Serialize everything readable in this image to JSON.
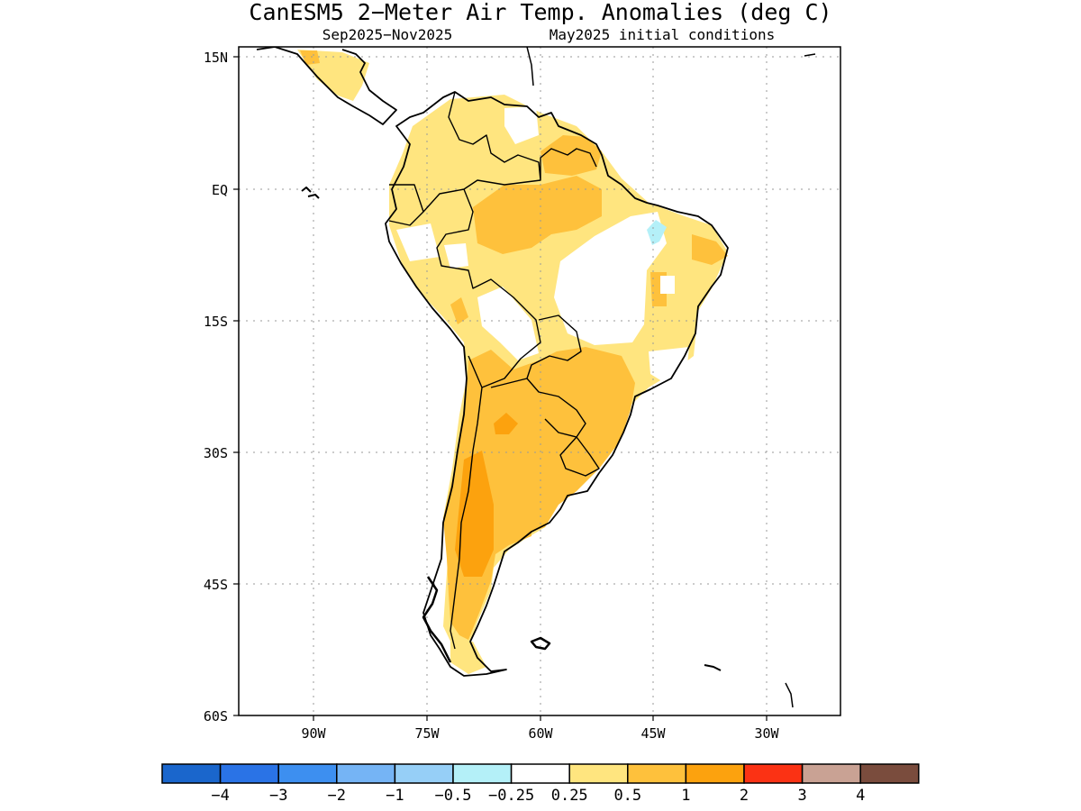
{
  "title": "CanESM5 2−Meter Air Temp. Anomalies (deg C)",
  "subtitle_left": "Sep2025−Nov2025",
  "subtitle_right": "May2025 initial conditions",
  "chart_data": {
    "type": "heatmap",
    "region": "South America",
    "variable": "2-Meter Air Temperature Anomaly",
    "units": "deg C",
    "lat_ticks": [
      "15N",
      "EQ",
      "15S",
      "30S",
      "45S",
      "60S"
    ],
    "lon_ticks": [
      "90W",
      "75W",
      "60W",
      "45W",
      "30W"
    ],
    "lat_range": [
      -60,
      15
    ],
    "lon_range": [
      -100,
      -20
    ],
    "grid": true,
    "colorbar": {
      "labels": [
        "−4",
        "−3",
        "−2",
        "−1",
        "−0.5",
        "−0.25",
        "0.25",
        "0.5",
        "1",
        "2",
        "3",
        "4"
      ],
      "colors": [
        "#1a66cc",
        "#2a73e6",
        "#3d8ff0",
        "#75b4f5",
        "#96cff7",
        "#b4f0f8",
        "#ffffff",
        "#ffe57f",
        "#fec13c",
        "#fca20e",
        "#fb3214",
        "#c9a294",
        "#7a4c3d"
      ]
    },
    "anomaly_zones": [
      {
        "category": "0.25 to 0.5",
        "color": "#ffe57f",
        "areas": [
          "Colombia",
          "Venezuela",
          "Ecuador",
          "Peru",
          "western Bolivia",
          "eastern Brazil",
          "Central America"
        ]
      },
      {
        "category": "0.5 to 1",
        "color": "#fec13c",
        "areas": [
          "central Amazon",
          "Guianas",
          "Paraguay",
          "southern Brazil",
          "Argentina",
          "Chile"
        ]
      },
      {
        "category": "1 to 2",
        "color": "#fca20e",
        "areas": [
          "western Patagonia",
          "northern Argentina spot"
        ]
      },
      {
        "category": "-0.5 to -0.25",
        "color": "#b4f0f8",
        "areas": [
          "northeast Brazil spot"
        ]
      }
    ]
  }
}
